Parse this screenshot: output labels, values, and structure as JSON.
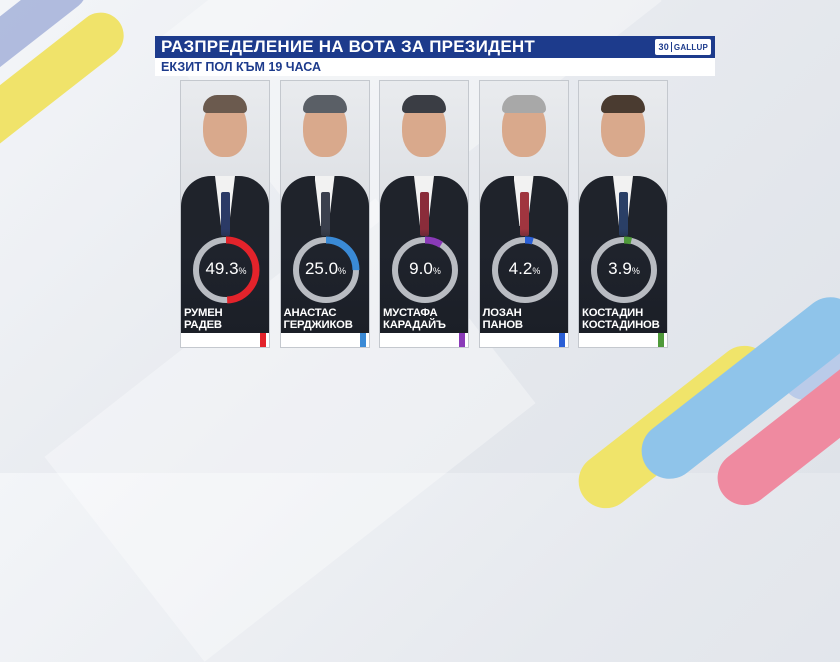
{
  "header": {
    "title": "РАЗПРЕДЕЛЕНИЕ НА ВОТА ЗА ПРЕЗИДЕНТ",
    "subtitle": "ЕКЗИТ ПОЛ КЪМ 19 ЧАСА",
    "logo_number": "30",
    "logo_text": "GALLUP"
  },
  "chart_data": {
    "type": "pie",
    "title": "РАЗПРЕДЕЛЕНИЕ НА ВОТА ЗА ПРЕЗИДЕНТ",
    "subtitle": "ЕКЗИТ ПОЛ КЪМ 19 ЧАСА",
    "unit": "%",
    "candidates": [
      {
        "name_line1": "РУМЕН",
        "name_line2": "РАДЕВ",
        "value": 49.3,
        "value_label": "49.3",
        "color": "#e3232b"
      },
      {
        "name_line1": "АНАСТАС",
        "name_line2": "ГЕРДЖИКОВ",
        "value": 25.0,
        "value_label": "25.0",
        "color": "#3a8ad6"
      },
      {
        "name_line1": "МУСТАФА",
        "name_line2": "КАРАДАЙЪ",
        "value": 9.0,
        "value_label": "9.0",
        "color": "#8a3ab8"
      },
      {
        "name_line1": "ЛОЗАН",
        "name_line2": "ПАНОВ",
        "value": 4.2,
        "value_label": "4.2",
        "color": "#2a5fd6"
      },
      {
        "name_line1": "КОСТАДИН",
        "name_line2": "КОСТАДИНОВ",
        "value": 3.9,
        "value_label": "3.9",
        "color": "#4f9a3a"
      }
    ]
  }
}
